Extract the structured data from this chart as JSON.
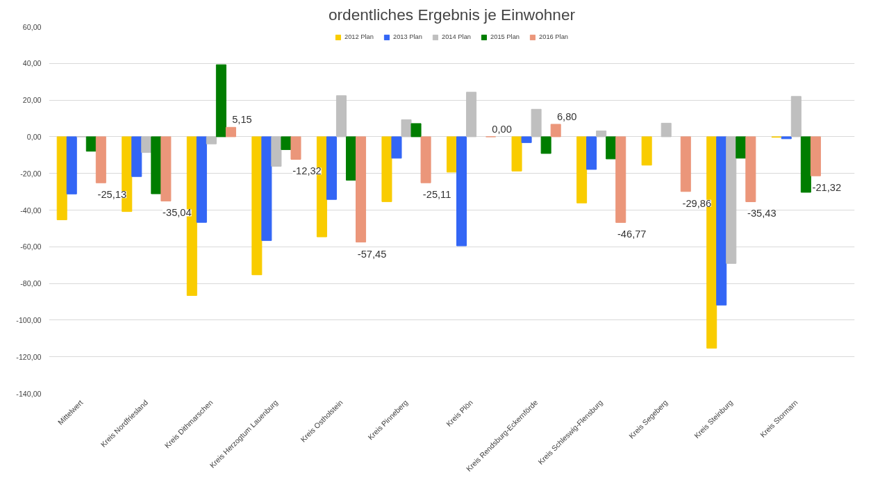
{
  "chart_data": {
    "type": "bar",
    "title": "ordentliches Ergebnis je Einwohner",
    "categories": [
      "Mittelwert",
      "Kreis Nordfriesland",
      "Kreis Dithmarschen",
      "Kreis Herzogtum Lauenburg",
      "Kreis Ostholstein",
      "Kreis Pinneberg",
      "Kreis Plön",
      "Kreis Rendsburg-Eckernförde",
      "Kreis Schleswig-Flensburg",
      "Kreis Segeberg",
      "Kreis Steinburg",
      "Kreis Stormarn"
    ],
    "series": [
      {
        "name": "2012 Plan",
        "color": "#f9cc00",
        "values": [
          -45.3,
          -40.8,
          -86.6,
          -75.3,
          -54.6,
          -35.4,
          -19.3,
          -18.7,
          -36.1,
          -15.5,
          -115.3,
          -0.3
        ]
      },
      {
        "name": "2013 Plan",
        "color": "#3366f5",
        "values": [
          -31.2,
          -21.7,
          -46.7,
          -56.6,
          -34.2,
          -11.7,
          -59.5,
          -3.2,
          -17.8,
          null,
          -91.8,
          -1.1
        ]
      },
      {
        "name": "2014 Plan",
        "color": "#bfbfbf",
        "values": [
          0,
          -8.6,
          -3.9,
          -16.1,
          22.4,
          9.3,
          24.3,
          15.0,
          3.2,
          7.4,
          -69.1,
          22.0
        ]
      },
      {
        "name": "2015 Plan",
        "color": "#007d00",
        "values": [
          -7.9,
          -31.1,
          39.3,
          -7.0,
          -23.7,
          7.2,
          null,
          -9.1,
          -12.1,
          null,
          -11.7,
          -30.3
        ]
      },
      {
        "name": "2016 Plan",
        "color": "#eb967a",
        "values": [
          -25.13,
          -35.04,
          5.15,
          -12.32,
          -57.45,
          -25.11,
          0.0,
          6.8,
          -46.77,
          -29.86,
          -35.43,
          -21.32
        ],
        "value_labels": [
          "-25,13",
          "-35,04",
          "5,15",
          "-12,32",
          "-57,45",
          "-25,11",
          "0,00",
          "6,80",
          "-46,77",
          "-29,86",
          "-35,43",
          "-21,32"
        ]
      }
    ],
    "ylim": [
      -140,
      60
    ],
    "yticks": [
      {
        "value": -140,
        "label": "-140,00"
      },
      {
        "value": -120,
        "label": "-120,00"
      },
      {
        "value": -100,
        "label": "-100,00"
      },
      {
        "value": -80,
        "label": "-80,00"
      },
      {
        "value": -60,
        "label": "-60,00"
      },
      {
        "value": -40,
        "label": "-40,00"
      },
      {
        "value": -20,
        "label": "-20,00"
      },
      {
        "value": 0,
        "label": "0,00"
      },
      {
        "value": 20,
        "label": "20,00"
      },
      {
        "value": 40,
        "label": "40,00"
      },
      {
        "value": 60,
        "label": "60,00"
      }
    ],
    "grid": "y",
    "legend": "top"
  }
}
